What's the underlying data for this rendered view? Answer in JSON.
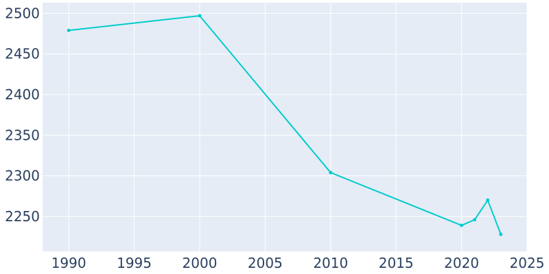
{
  "chart_data": {
    "type": "line",
    "title": "",
    "xlabel": "",
    "ylabel": "",
    "x": [
      1990,
      2000,
      2010,
      2020,
      2021,
      2022,
      2023
    ],
    "series": [
      {
        "values": [
          2479,
          2497,
          2304,
          2239,
          2246,
          2270,
          2228
        ]
      }
    ],
    "xlim": [
      1988,
      2025
    ],
    "ylim": [
      2207,
      2513
    ],
    "xticks": [
      1990,
      1995,
      2000,
      2005,
      2010,
      2015,
      2020,
      2025
    ],
    "yticks": [
      2250,
      2300,
      2350,
      2400,
      2450,
      2500
    ],
    "xtick_labels": [
      "1990",
      "1995",
      "2000",
      "2005",
      "2010",
      "2015",
      "2020",
      "2025"
    ],
    "ytick_labels": [
      "2250",
      "2300",
      "2350",
      "2400",
      "2450",
      "2500"
    ],
    "grid": true,
    "legend": "none",
    "colors": {
      "line": "#00CCCC",
      "plot_background": "#E5ECF6",
      "grid": "#FFFFFF",
      "tick_text": "#2A3F5F"
    }
  }
}
